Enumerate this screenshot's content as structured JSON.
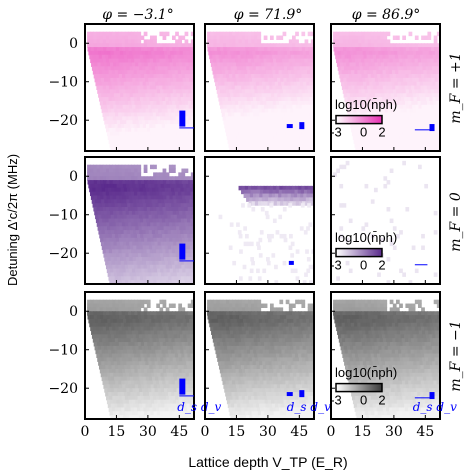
{
  "chart_data": {
    "type": "heatmap",
    "column_titles": [
      "φ = −3.1°",
      "φ = 71.9°",
      "φ = 86.9°"
    ],
    "row_titles": [
      "m_F = +1",
      "m_F = 0",
      "m_F = −1"
    ],
    "xlabel": "Lattice depth V_TP (E_R)",
    "ylabel": "Detuning Δ′c/2π (MHz)",
    "xlim": [
      0,
      52
    ],
    "ylim": [
      -28,
      5
    ],
    "xticks": [
      0,
      15,
      30,
      45
    ],
    "xtick_labels": [
      "0",
      "15",
      "30",
      "45"
    ],
    "yticks": [
      0,
      -10,
      -20
    ],
    "ytick_labels": [
      "0",
      "−10",
      "−20"
    ],
    "colorbar": {
      "label": "log10(n̄ph)",
      "ticks": [
        "-3",
        "0",
        "2"
      ],
      "range": [
        -3,
        2
      ],
      "shown_in_column": 2
    },
    "inset_labels": [
      "d_s",
      "d_v"
    ],
    "colormaps": {
      "row_0": [
        "#ffffff",
        "#e830b4"
      ],
      "row_1": [
        "#ffffff",
        "#5a2a8c"
      ],
      "row_2": [
        "#ffffff",
        "#3a3a3a"
      ]
    },
    "marker_color": "#0000ff",
    "panels": [
      {
        "row": 0,
        "col": 0,
        "mode": "wedge",
        "peak": [
          10.5,
          -2.5
        ],
        "top_mean": 0.65,
        "cutoff_slope": 0.42
      },
      {
        "row": 0,
        "col": 1,
        "mode": "wedge",
        "peak": [
          10.5,
          -2.5
        ],
        "top_mean": 0.45,
        "cutoff_slope": 0.4
      },
      {
        "row": 0,
        "col": 2,
        "mode": "wedge",
        "peak": [
          10.5,
          -2.5
        ],
        "top_mean": 0.45,
        "cutoff_slope": 0.4
      },
      {
        "row": 1,
        "col": 0,
        "mode": "wedge",
        "peak": [
          7.5,
          -3.0
        ],
        "top_mean": 1.2,
        "cutoff_slope": 0.4
      },
      {
        "row": 1,
        "col": 1,
        "mode": "band",
        "band": [
          -2.5,
          -7.0
        ],
        "x_start": 16,
        "level": 0.9
      },
      {
        "row": 1,
        "col": 2,
        "mode": "sparse"
      },
      {
        "row": 2,
        "col": 0,
        "mode": "wedge",
        "peak": [
          10,
          -2.0
        ],
        "top_mean": 0.9,
        "cutoff_slope": 0.42
      },
      {
        "row": 2,
        "col": 1,
        "mode": "wedge",
        "peak": [
          10,
          -2.0
        ],
        "top_mean": 0.9,
        "cutoff_slope": 0.42
      },
      {
        "row": 2,
        "col": 2,
        "mode": "wedge",
        "peak": [
          10,
          -2.0
        ],
        "top_mean": 0.9,
        "cutoff_slope": 0.42
      }
    ]
  }
}
